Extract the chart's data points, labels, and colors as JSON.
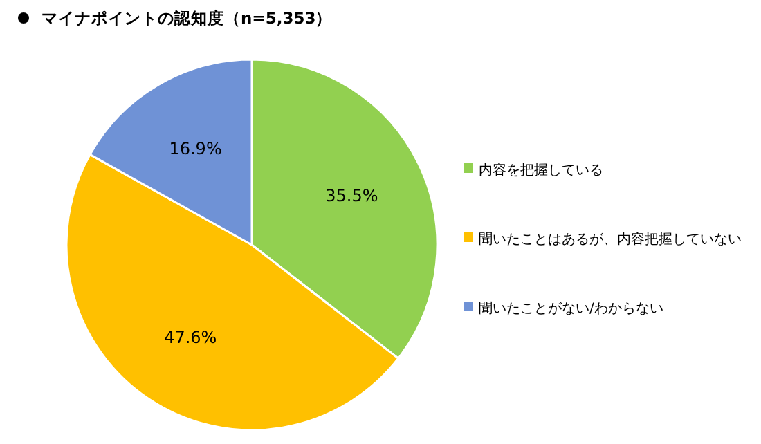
{
  "chart_data": {
    "type": "pie",
    "title": "マイナポイントの認知度（n=5,353）",
    "categories": [
      "内容を把握している",
      "聞いたことはあるが、内容把握していない",
      "聞いたことがない/わからない"
    ],
    "values": [
      35.5,
      47.6,
      16.9
    ],
    "value_labels": [
      "35.5%",
      "47.6%",
      "16.9%"
    ],
    "colors": [
      "#92d050",
      "#ffc000",
      "#6f92d6"
    ],
    "legend": "right"
  }
}
